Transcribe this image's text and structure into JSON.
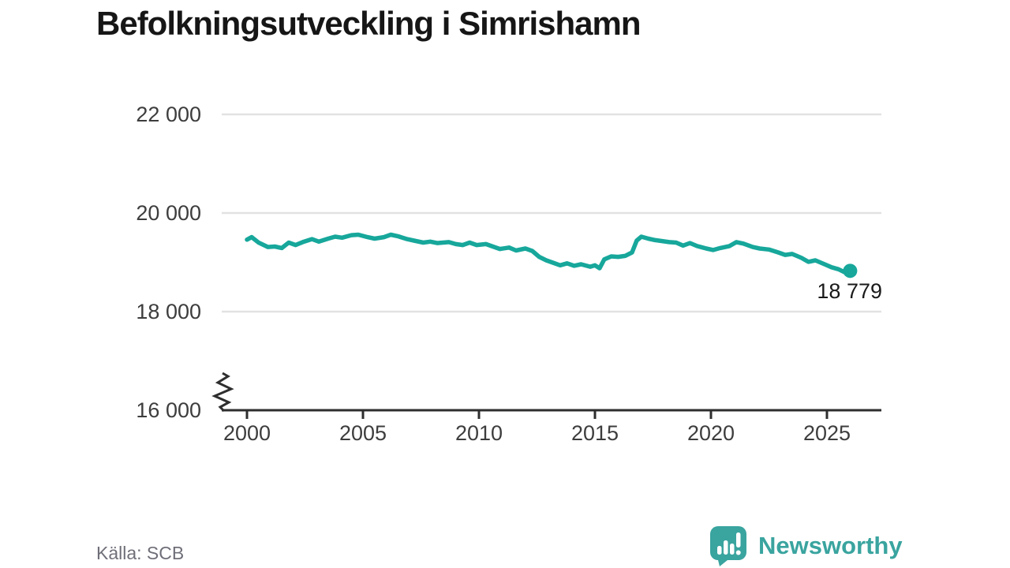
{
  "title": "Befolkningsutveckling i Simrishamn",
  "source": "Källa: SCB",
  "logo": {
    "text": "Newsworthy"
  },
  "colors": {
    "line": "#17a79b",
    "marker": "#17a79b",
    "grid": "#e2e2e2",
    "axis": "#2e2e2e",
    "tick_text": "#3d3d3d",
    "title_text": "#161616",
    "source_text": "#6f6f79",
    "logo_teal": "#3aa49f",
    "annotation_text": "#1a1a1a",
    "background": "#ffffff"
  },
  "chart_data": {
    "type": "line",
    "title": "Befolkningsutveckling i Simrishamn",
    "xlabel": "",
    "ylabel": "",
    "x_range": [
      2000,
      2026
    ],
    "ylim": [
      16000,
      22000
    ],
    "y_axis_break": true,
    "grid": "horizontal",
    "legend": "none",
    "yticks": [
      16000,
      18000,
      20000,
      22000
    ],
    "ytick_labels": [
      "16 000",
      "18 000",
      "20 000",
      "22 000"
    ],
    "xticks": [
      2000,
      2005,
      2010,
      2015,
      2020,
      2025
    ],
    "xtick_labels": [
      "2000",
      "2005",
      "2010",
      "2015",
      "2020",
      "2025"
    ],
    "end_label": "18 779",
    "final_value": 18779,
    "series": [
      {
        "name": "Befolkning",
        "points": [
          [
            2000.0,
            19460
          ],
          [
            2000.2,
            19510
          ],
          [
            2000.5,
            19400
          ],
          [
            2000.9,
            19310
          ],
          [
            2001.2,
            19320
          ],
          [
            2001.5,
            19290
          ],
          [
            2001.8,
            19400
          ],
          [
            2002.1,
            19350
          ],
          [
            2002.4,
            19410
          ],
          [
            2002.8,
            19470
          ],
          [
            2003.1,
            19420
          ],
          [
            2003.5,
            19480
          ],
          [
            2003.8,
            19520
          ],
          [
            2004.1,
            19500
          ],
          [
            2004.5,
            19550
          ],
          [
            2004.8,
            19560
          ],
          [
            2005.2,
            19510
          ],
          [
            2005.5,
            19480
          ],
          [
            2005.9,
            19510
          ],
          [
            2006.2,
            19560
          ],
          [
            2006.5,
            19530
          ],
          [
            2006.9,
            19470
          ],
          [
            2007.2,
            19440
          ],
          [
            2007.6,
            19400
          ],
          [
            2007.9,
            19420
          ],
          [
            2008.2,
            19390
          ],
          [
            2008.7,
            19410
          ],
          [
            2009.0,
            19370
          ],
          [
            2009.3,
            19350
          ],
          [
            2009.6,
            19400
          ],
          [
            2009.9,
            19350
          ],
          [
            2010.3,
            19370
          ],
          [
            2010.6,
            19320
          ],
          [
            2010.9,
            19270
          ],
          [
            2011.3,
            19300
          ],
          [
            2011.6,
            19240
          ],
          [
            2012.0,
            19280
          ],
          [
            2012.3,
            19230
          ],
          [
            2012.6,
            19110
          ],
          [
            2012.9,
            19040
          ],
          [
            2013.2,
            18990
          ],
          [
            2013.5,
            18940
          ],
          [
            2013.8,
            18980
          ],
          [
            2014.1,
            18930
          ],
          [
            2014.4,
            18960
          ],
          [
            2014.8,
            18910
          ],
          [
            2015.0,
            18940
          ],
          [
            2015.2,
            18880
          ],
          [
            2015.4,
            19060
          ],
          [
            2015.7,
            19120
          ],
          [
            2016.0,
            19110
          ],
          [
            2016.3,
            19130
          ],
          [
            2016.6,
            19200
          ],
          [
            2016.8,
            19440
          ],
          [
            2017.0,
            19520
          ],
          [
            2017.3,
            19480
          ],
          [
            2017.6,
            19450
          ],
          [
            2017.9,
            19430
          ],
          [
            2018.2,
            19410
          ],
          [
            2018.5,
            19400
          ],
          [
            2018.8,
            19340
          ],
          [
            2019.1,
            19390
          ],
          [
            2019.4,
            19330
          ],
          [
            2019.8,
            19280
          ],
          [
            2020.1,
            19250
          ],
          [
            2020.4,
            19290
          ],
          [
            2020.8,
            19330
          ],
          [
            2021.1,
            19410
          ],
          [
            2021.4,
            19380
          ],
          [
            2021.8,
            19310
          ],
          [
            2022.1,
            19280
          ],
          [
            2022.5,
            19260
          ],
          [
            2022.9,
            19200
          ],
          [
            2023.2,
            19150
          ],
          [
            2023.5,
            19170
          ],
          [
            2023.9,
            19090
          ],
          [
            2024.2,
            19010
          ],
          [
            2024.5,
            19040
          ],
          [
            2024.9,
            18960
          ],
          [
            2025.2,
            18900
          ],
          [
            2025.5,
            18860
          ],
          [
            2025.8,
            18790
          ],
          [
            2026.0,
            18779
          ]
        ]
      }
    ]
  }
}
